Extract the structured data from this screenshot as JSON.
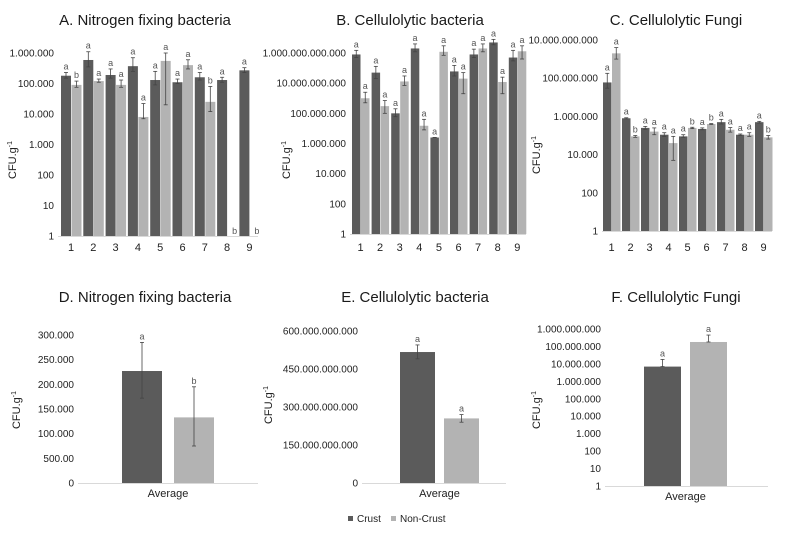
{
  "colors": {
    "crust": "#5b5b5b",
    "non_crust": "#b3b3b3",
    "errorbar": "#444444",
    "axis": "#d9d9d9"
  },
  "legend": {
    "items": [
      {
        "label": "Crust",
        "color_key": "crust"
      },
      {
        "label": "Non-Crust",
        "color_key": "non_crust"
      }
    ],
    "placement": "bottom-center"
  },
  "chart_data": [
    {
      "id": "A",
      "type": "bar",
      "title": "A. Nitrogen fixing bacteria",
      "ylabel": "CFU.g",
      "ylabel_sup": "-1",
      "yscale": "log",
      "ylim": [
        1,
        1000000
      ],
      "yticks": [
        1,
        10,
        100,
        1000,
        10000,
        100000,
        1000000
      ],
      "ytick_labels": [
        "1",
        "10",
        "100",
        "1.000",
        "10.000",
        "100.000",
        "1.000.000"
      ],
      "categories": [
        "1",
        "2",
        "3",
        "4",
        "5",
        "6",
        "7",
        "8",
        "9"
      ],
      "series": [
        {
          "name": "Crust",
          "values": [
            180000,
            590000,
            190000,
            370000,
            130000,
            110000,
            160000,
            130000,
            270000
          ],
          "err_hi": [
            230000,
            1100000,
            300000,
            700000,
            250000,
            140000,
            230000,
            160000,
            330000
          ],
          "err_lo": [
            150000,
            350000,
            150000,
            250000,
            90000,
            100000,
            130000,
            110000,
            230000
          ],
          "labels": [
            "a",
            "a",
            "a",
            "a",
            "a",
            "a",
            "a",
            "a",
            "a"
          ]
        },
        {
          "name": "Non-Crust",
          "values": [
            90000,
            120000,
            90000,
            8000,
            550000,
            400000,
            25000,
            0,
            0
          ],
          "err_hi": [
            120000,
            140000,
            130000,
            22000,
            1000000,
            600000,
            80000,
            0,
            0
          ],
          "err_lo": [
            75000,
            110000,
            75000,
            7000,
            20000,
            300000,
            12000,
            0,
            0
          ],
          "labels": [
            "b",
            "a",
            "a",
            "a",
            "a",
            "a",
            "b",
            "b",
            "b"
          ]
        }
      ]
    },
    {
      "id": "B",
      "type": "bar",
      "title": "B. Cellulolytic bacteria",
      "ylabel": "CFU.g",
      "ylabel_sup": "-1",
      "yscale": "log",
      "ylim": [
        1,
        1000000000000
      ],
      "yticks": [
        1,
        100,
        10000,
        1000000,
        100000000,
        10000000000,
        1000000000000
      ],
      "ytick_labels": [
        "1",
        "100",
        "10.000",
        "1.000.000",
        "100.000.000",
        "10.000.000.000",
        "1.000.000.000.000"
      ],
      "categories": [
        "1",
        "2",
        "3",
        "4",
        "5",
        "6",
        "7",
        "8",
        "9"
      ],
      "series": [
        {
          "name": "Crust",
          "values": [
            800000000000,
            50000000000,
            100000000,
            2000000000000,
            2500000,
            60000000000,
            800000000000,
            5000000000000,
            500000000000
          ],
          "err_hi": [
            1500000000000,
            130000000000,
            200000000,
            4000000000000,
            2500000,
            150000000000,
            1800000000000,
            8000000000000,
            1500000000000
          ],
          "err_lo": [
            500000000000,
            20000000000,
            60000000,
            1200000000000,
            2500000,
            30000000000,
            500000000000,
            3500000000000,
            300000000000
          ],
          "labels": [
            "a",
            "a",
            "a",
            "a",
            "a",
            "a",
            "a",
            "a",
            "a"
          ]
        },
        {
          "name": "Non-Crust",
          "values": [
            1000000000,
            300000000,
            13000000000,
            15000000,
            1200000000000,
            20000000000,
            2000000000000,
            12000000000,
            1300000000000
          ],
          "err_hi": [
            2500000000,
            700000000,
            30000000000,
            40000000,
            3000000000000,
            50000000000,
            4000000000000,
            25000000000,
            3000000000000
          ],
          "err_lo": [
            500000000,
            100000000,
            7000000000,
            8000000,
            700000000000,
            2000000000,
            1200000000000,
            2000000000,
            400000000000
          ],
          "labels": [
            "a",
            "a",
            "a",
            "a",
            "a",
            "a",
            "a",
            "a",
            "a"
          ]
        }
      ]
    },
    {
      "id": "C",
      "type": "bar",
      "title": "C. Cellulolytic Fungi",
      "ylabel": "CFU.g",
      "ylabel_sup": "-1",
      "yscale": "log",
      "ylim": [
        1,
        10000000000
      ],
      "yticks": [
        1,
        100,
        10000,
        1000000,
        100000000,
        10000000000
      ],
      "ytick_labels": [
        "1",
        "100",
        "10.000",
        "1.000.000",
        "100.000.000",
        "10.000.000.000"
      ],
      "categories": [
        "1",
        "2",
        "3",
        "4",
        "5",
        "6",
        "7",
        "8",
        "9"
      ],
      "series": [
        {
          "name": "Crust",
          "values": [
            60000000,
            800000,
            250000,
            110000,
            90000,
            220000,
            500000,
            110000,
            500000
          ],
          "err_hi": [
            180000000,
            850000,
            300000,
            140000,
            110000,
            250000,
            700000,
            120000,
            550000
          ],
          "err_lo": [
            30000000,
            750000,
            210000,
            90000,
            80000,
            200000,
            400000,
            100000,
            450000
          ],
          "labels": [
            "a",
            "a",
            "a",
            "a",
            "a",
            "a",
            "a",
            "a",
            "a"
          ]
        },
        {
          "name": "Non-Crust",
          "values": [
            2000000000,
            90000,
            160000,
            40000,
            250000,
            400000,
            200000,
            110000,
            80000
          ],
          "err_hi": [
            4000000000,
            100000,
            250000,
            90000,
            270000,
            420000,
            260000,
            140000,
            100000
          ],
          "err_lo": [
            1000000000,
            80000,
            110000,
            5000,
            230000,
            380000,
            150000,
            90000,
            65000
          ],
          "labels": [
            "a",
            "b",
            "a",
            "a",
            "b",
            "b",
            "a",
            "a",
            "b"
          ]
        }
      ]
    },
    {
      "id": "D",
      "type": "bar",
      "title": "D. Nitrogen fixing bacteria",
      "ylabel": "CFU.g",
      "ylabel_sup": "-1",
      "yscale": "linear",
      "ylim": [
        0,
        300000
      ],
      "yticks": [
        0,
        50000,
        100000,
        150000,
        200000,
        250000,
        300000
      ],
      "ytick_labels": [
        "0",
        "500.00",
        "100.000",
        "150.000",
        "200.000",
        "250.000",
        "300.000"
      ],
      "categories": [
        "Average"
      ],
      "series": [
        {
          "name": "Crust",
          "values": [
            227000
          ],
          "err_hi": [
            285000
          ],
          "err_lo": [
            172000
          ],
          "labels": [
            "a"
          ]
        },
        {
          "name": "Non-Crust",
          "values": [
            133000
          ],
          "err_hi": [
            195000
          ],
          "err_lo": [
            75000
          ],
          "labels": [
            "b"
          ]
        }
      ]
    },
    {
      "id": "E",
      "type": "bar",
      "title": "E. Cellulolytic bacteria",
      "ylabel": "CFU.g",
      "ylabel_sup": "-1",
      "yscale": "linear",
      "ylim": [
        0,
        600000000000
      ],
      "yticks": [
        0,
        150000000000,
        300000000000,
        450000000000,
        600000000000
      ],
      "ytick_labels": [
        "0",
        "150.000.000.000",
        "300.000.000.000",
        "450.000.000.000",
        "600.000.000.000"
      ],
      "categories": [
        "Average"
      ],
      "series": [
        {
          "name": "Crust",
          "values": [
            517000000000
          ],
          "err_hi": [
            545000000000
          ],
          "err_lo": [
            490000000000
          ],
          "labels": [
            "a"
          ]
        },
        {
          "name": "Non-Crust",
          "values": [
            255000000000
          ],
          "err_hi": [
            270000000000
          ],
          "err_lo": [
            240000000000
          ],
          "labels": [
            "a"
          ]
        }
      ]
    },
    {
      "id": "F",
      "type": "bar",
      "title": "F. Cellulolytic Fungi",
      "ylabel": "CFU.g",
      "ylabel_sup": "-1",
      "yscale": "log",
      "ylim": [
        1,
        1000000000
      ],
      "yticks": [
        1,
        10,
        100,
        1000,
        10000,
        100000,
        1000000,
        10000000,
        100000000,
        1000000000
      ],
      "ytick_labels": [
        "1",
        "10",
        "100",
        "1.000",
        "10.000",
        "100.000",
        "1.000.000",
        "10.000.000",
        "100.000.000",
        "1.000.000.000"
      ],
      "categories": [
        "Average"
      ],
      "series": [
        {
          "name": "Crust",
          "values": [
            7000000
          ],
          "err_hi": [
            18000000
          ],
          "err_lo": [
            7000000
          ],
          "labels": [
            "a"
          ]
        },
        {
          "name": "Non-Crust",
          "values": [
            180000000
          ],
          "err_hi": [
            450000000
          ],
          "err_lo": [
            180000000
          ],
          "labels": [
            "a"
          ]
        }
      ]
    }
  ]
}
